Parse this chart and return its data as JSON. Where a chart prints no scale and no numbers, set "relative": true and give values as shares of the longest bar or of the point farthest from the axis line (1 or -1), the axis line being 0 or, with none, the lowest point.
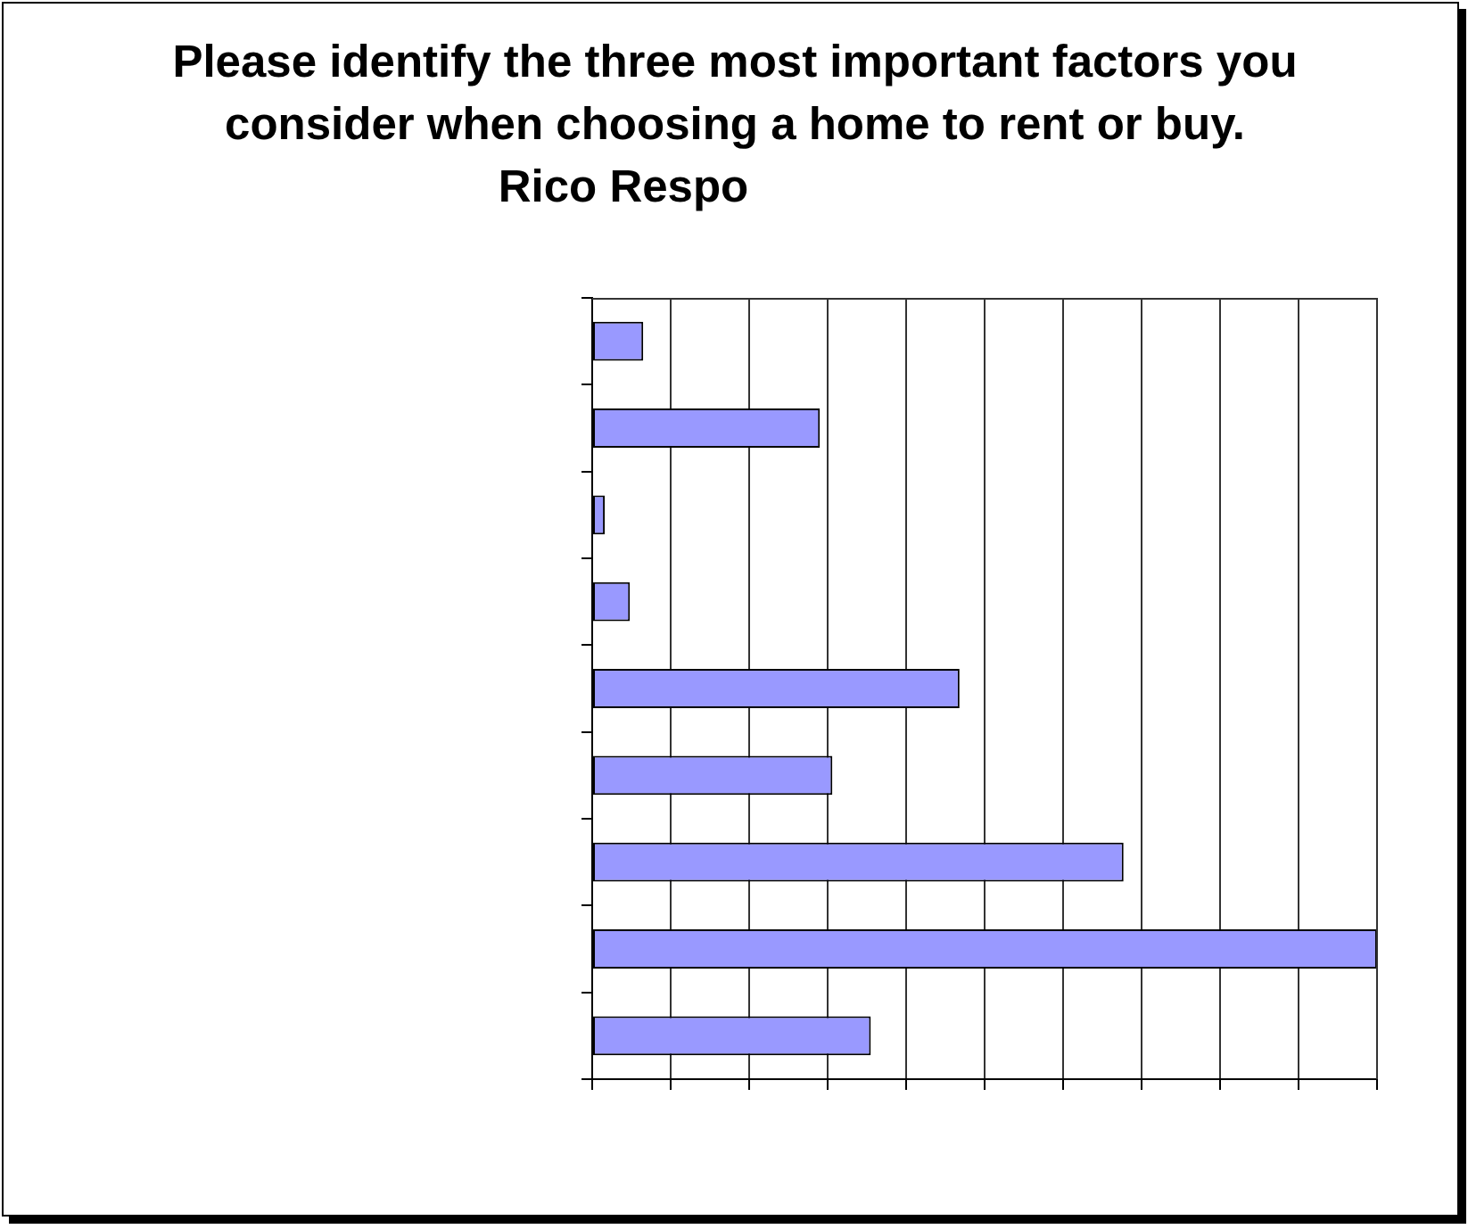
{
  "chart_data": {
    "type": "bar",
    "orientation": "horizontal",
    "title": "Please identify the three most important factors you consider when choosing a home to rent or buy.",
    "subtitle": "Rico Respo",
    "categories": [
      null,
      null,
      null,
      null,
      null,
      null,
      null,
      null,
      null
    ],
    "values": [
      0.065,
      0.29,
      0.016,
      0.048,
      0.468,
      0.306,
      0.677,
      1,
      0.355
    ],
    "color": "#9999ff",
    "relative": true,
    "grid": "x"
  }
}
